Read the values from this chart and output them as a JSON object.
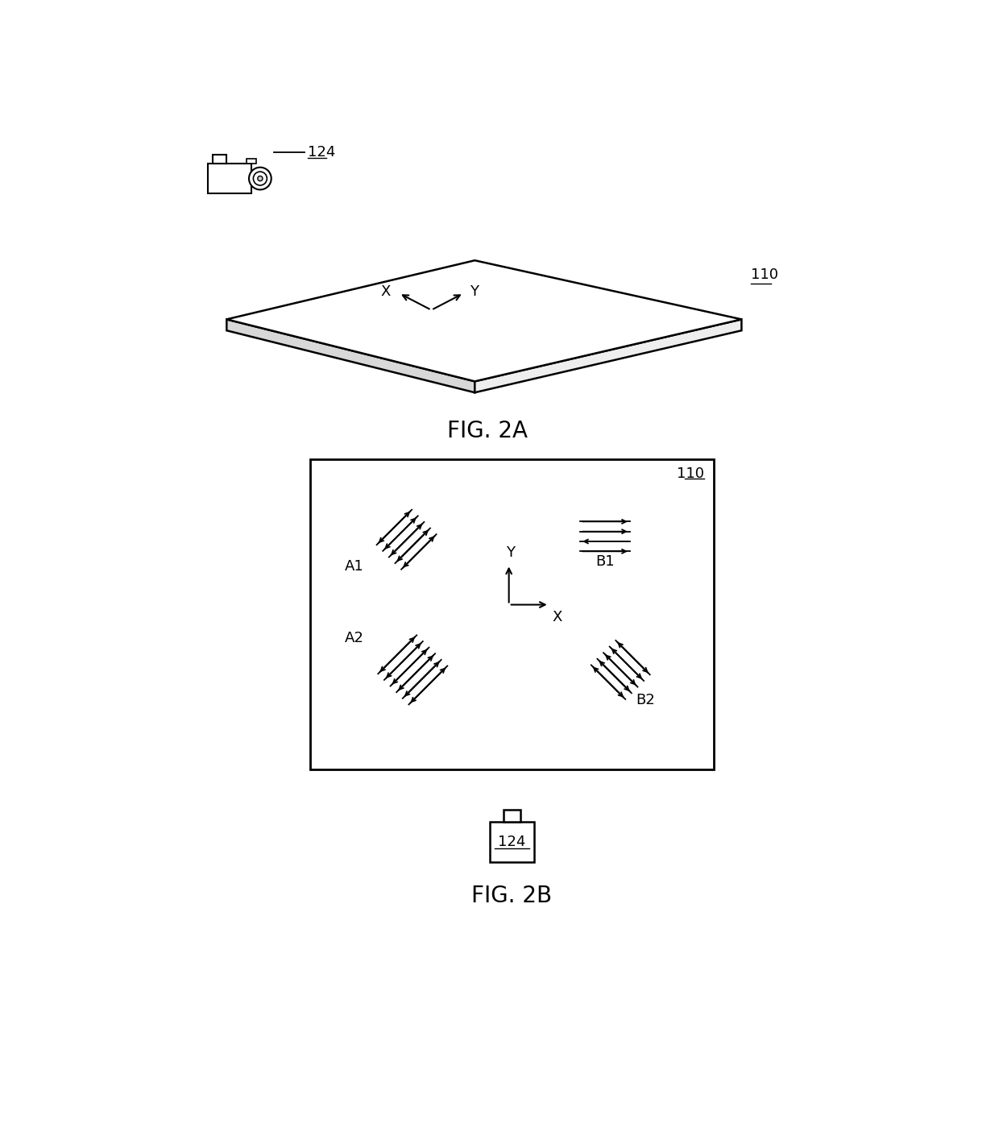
{
  "bg_color": "#ffffff",
  "line_color": "#000000",
  "fig_label_2a": "FIG. 2A",
  "fig_label_2b": "FIG. 2B",
  "label_110": "110",
  "label_124": "124",
  "label_a1": "A1",
  "label_a2": "A2",
  "label_b1": "B1",
  "label_b2": "B2",
  "label_x": "X",
  "label_y": "Y",
  "font_size_fig": 20,
  "font_size_label": 13,
  "font_size_ref": 13,
  "font_size_axis": 13
}
